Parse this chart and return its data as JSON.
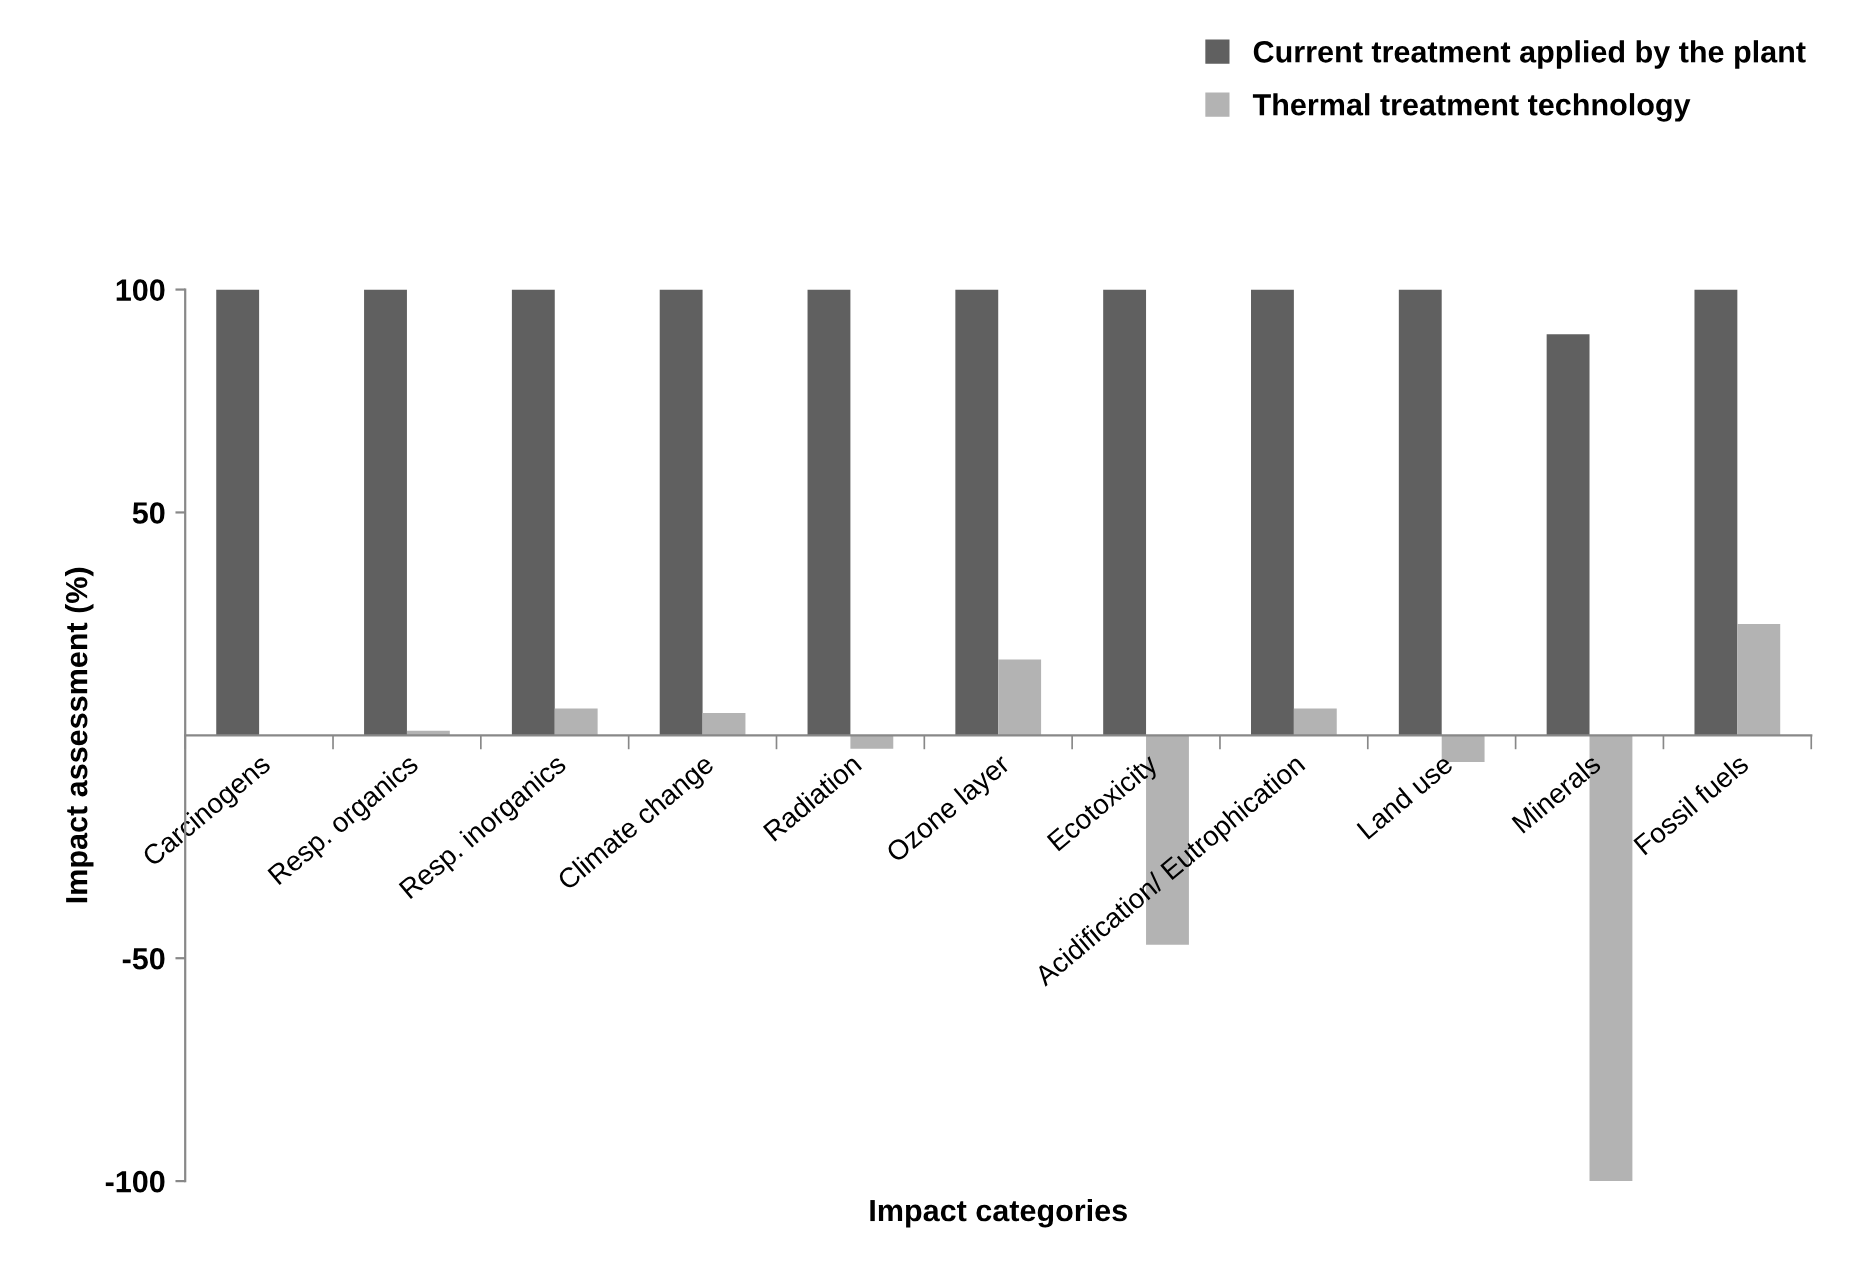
{
  "chart_data": {
    "type": "bar",
    "xlabel": "Impact categories",
    "ylabel": "Impact assessment (%)",
    "categories": [
      "Carcinogens",
      "Resp. organics",
      "Resp. inorganics",
      "Climate change",
      "Radiation",
      "Ozone layer",
      "Ecotoxicity",
      "Acidification/ Eutrophication",
      "Land use",
      "Minerals",
      "Fossil fuels"
    ],
    "series": [
      {
        "name": "Current treatment applied by the plant",
        "color": "#606060",
        "values": [
          100,
          100,
          100,
          100,
          100,
          100,
          100,
          100,
          100,
          90,
          100
        ]
      },
      {
        "name": "Thermal treatment technology",
        "color": "#b3b3b3",
        "values": [
          0,
          1,
          6,
          5,
          -3,
          17,
          -47,
          6,
          -6,
          -100,
          25
        ]
      }
    ],
    "ylim": [
      -100,
      100
    ],
    "yticks": [
      -100,
      -50,
      50,
      100
    ],
    "grid": false,
    "legend": "top right"
  }
}
